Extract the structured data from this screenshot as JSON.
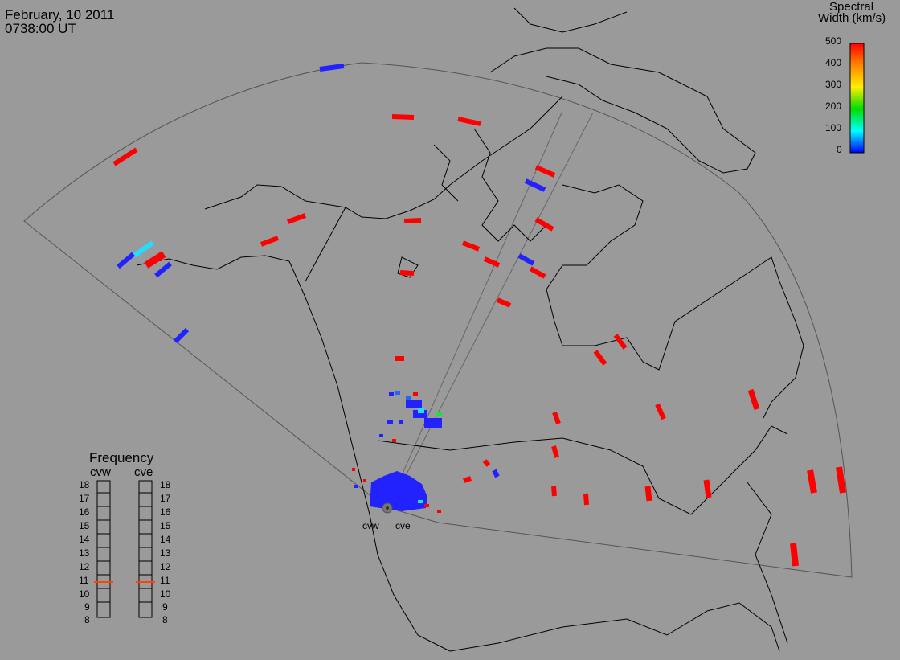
{
  "header": {
    "date": "February, 10 2011",
    "time": "0738:00 UT"
  },
  "colorbar": {
    "title_line1": "Spectral",
    "title_line2": "Width (km/s)",
    "ticks": [
      "500",
      "400",
      "300",
      "200",
      "100",
      "0"
    ],
    "scale_colors": [
      "#ff0000",
      "#ff8800",
      "#ffff00",
      "#00dd00",
      "#00ffff",
      "#0000ff"
    ]
  },
  "frequency": {
    "title": "Frequency",
    "columns": [
      {
        "label": "cvw",
        "selected": "11"
      },
      {
        "label": "cve",
        "selected": "11"
      }
    ],
    "ticks": [
      "18",
      "17",
      "16",
      "15",
      "14",
      "13",
      "12",
      "11",
      "10",
      "9",
      "8"
    ],
    "marker_color": "#ff4400"
  },
  "radars": [
    {
      "label": "cvw"
    },
    {
      "label": "cve"
    }
  ]
}
